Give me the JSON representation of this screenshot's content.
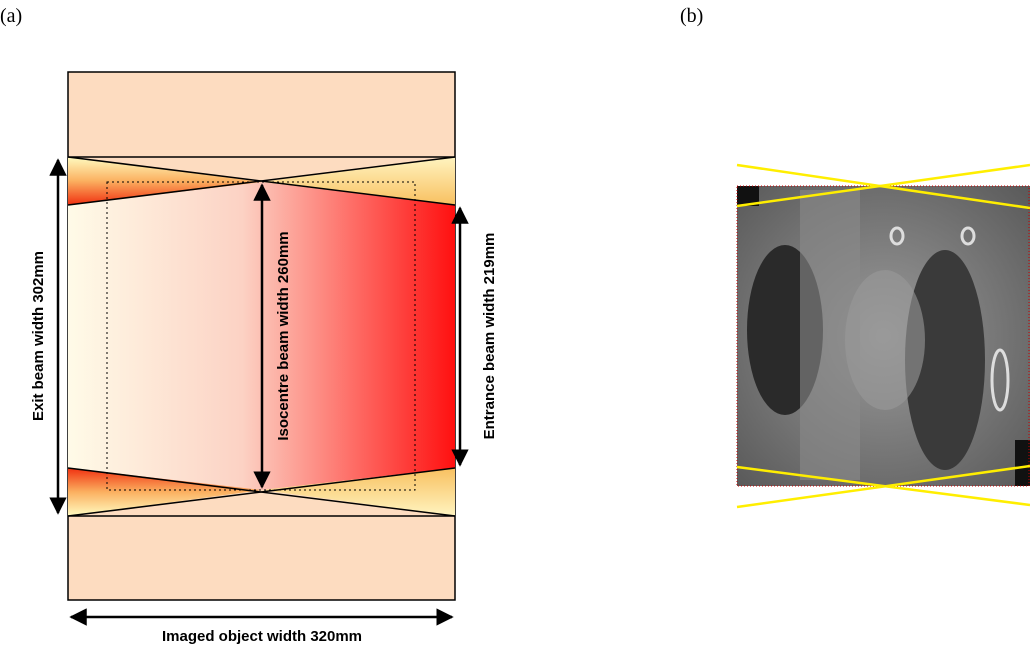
{
  "panel_a": {
    "label": "(a)",
    "exit_label": "Exit beam width 302mm",
    "isocentre_label": "Isocentre beam width 260mm",
    "entrance_label": "Entrance beam width 219mm",
    "object_label": "Imaged object width 320mm"
  },
  "panel_b": {
    "label": "(b)"
  }
}
